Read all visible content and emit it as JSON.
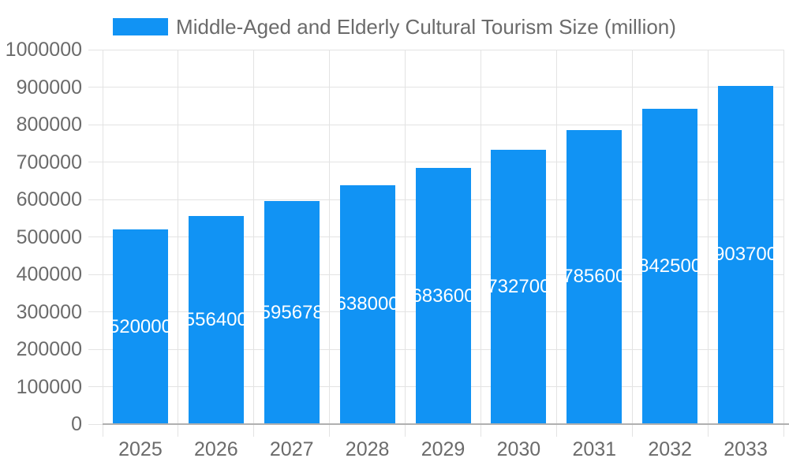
{
  "chart_data": {
    "type": "bar",
    "title": "Middle-Aged and Elderly Cultural Tourism Size (million)",
    "legend_label": "Middle-Aged and Elderly Cultural Tourism Size (million)",
    "legend_position": "top-center",
    "categories": [
      "2025",
      "2026",
      "2027",
      "2028",
      "2029",
      "2030",
      "2031",
      "2032",
      "2033"
    ],
    "values": [
      520000,
      556400,
      595678,
      638000,
      683600,
      732700,
      785600,
      842500,
      903700
    ],
    "y_tick_labels": [
      "0",
      "100000",
      "200000",
      "300000",
      "400000",
      "500000",
      "600000",
      "700000",
      "800000",
      "900000",
      "1000000"
    ],
    "ylim": [
      0,
      1000000
    ],
    "xlabel": "",
    "ylabel": "",
    "grid": true,
    "value_labels_position": "inside-center",
    "colors": {
      "bar": "#1193f4",
      "value_text": "#ffffff",
      "axis_text": "#6b6b6b",
      "grid": "#e3e3e3",
      "axis_line": "#b0b0b0"
    }
  }
}
